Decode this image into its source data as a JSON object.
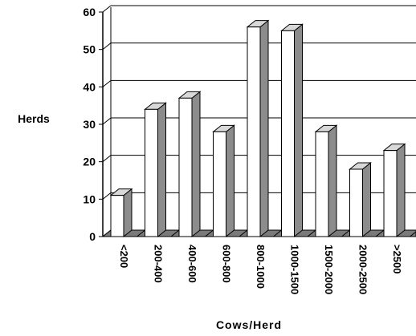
{
  "chart_data": {
    "type": "bar",
    "title": "",
    "xlabel": "Cows/Herd",
    "ylabel": "Herds",
    "categories": [
      "<200",
      "200-400",
      "400-600",
      "600-800",
      "800-1000",
      "1000-1500",
      "1500-2000",
      "2000-2500",
      ">2500"
    ],
    "values": [
      11,
      34,
      37,
      28,
      56,
      55,
      28,
      18,
      23
    ],
    "ylim": [
      0,
      60
    ],
    "yticks": [
      "0",
      "10",
      "20",
      "30",
      "40",
      "50",
      "60"
    ],
    "grid": true,
    "style": "3d",
    "colors": {
      "front": "#ffffff",
      "side": "#8c8c8c",
      "top": "#d8d8d8",
      "floor": "#7a7a7a",
      "stroke": "#000000"
    }
  }
}
